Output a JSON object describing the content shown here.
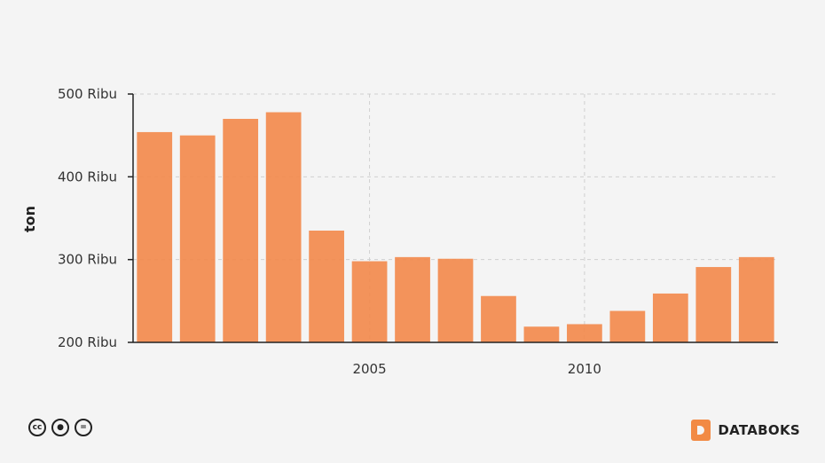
{
  "chart_data": {
    "type": "bar",
    "ylabel": "ton",
    "ylim": [
      200000,
      500000
    ],
    "yticks": [
      {
        "value": 200000,
        "label": "200 Ribu"
      },
      {
        "value": 300000,
        "label": "300 Ribu"
      },
      {
        "value": 400000,
        "label": "400 Ribu"
      },
      {
        "value": 500000,
        "label": "500 Ribu"
      }
    ],
    "xticks": [
      {
        "value": 2005,
        "label": "2005"
      },
      {
        "value": 2010,
        "label": "2010"
      }
    ],
    "x": [
      2000,
      2001,
      2002,
      2003,
      2004,
      2005,
      2006,
      2007,
      2008,
      2009,
      2010,
      2011,
      2012,
      2013,
      2014
    ],
    "values": [
      454000,
      450000,
      470000,
      478000,
      335000,
      298000,
      303000,
      301000,
      256000,
      219000,
      222000,
      238000,
      259000,
      291000,
      303000
    ],
    "bar_color": "#f28a4d",
    "grid": true
  },
  "footer": {
    "license_icons": [
      "cc-icon",
      "by-icon",
      "nd-icon"
    ],
    "brand": "DATABOKS",
    "brand_color": "#f28a44"
  }
}
